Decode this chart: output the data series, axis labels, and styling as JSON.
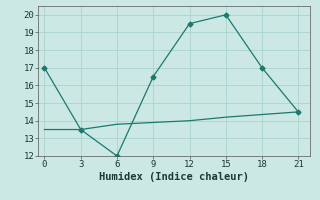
{
  "line1_x": [
    0,
    3,
    6,
    9,
    12,
    15,
    18,
    21
  ],
  "line1_y": [
    17,
    13.5,
    12,
    16.5,
    19.5,
    20,
    17,
    14.5
  ],
  "line2_x": [
    0,
    3,
    6,
    9,
    12,
    15,
    18,
    21
  ],
  "line2_y": [
    13.5,
    13.5,
    13.8,
    13.9,
    14.0,
    14.2,
    14.35,
    14.5
  ],
  "line_color": "#1a7a6e",
  "marker": "D",
  "markersize": 2.5,
  "xlabel": "Humidex (Indice chaleur)",
  "xlim": [
    -0.5,
    22
  ],
  "ylim": [
    12,
    20.5
  ],
  "xticks": [
    0,
    3,
    6,
    9,
    12,
    15,
    18,
    21
  ],
  "yticks": [
    12,
    13,
    14,
    15,
    16,
    17,
    18,
    19,
    20
  ],
  "background_color": "#cce8e4",
  "grid_color": "#aad4ce",
  "tick_fontsize": 6.5,
  "xlabel_fontsize": 7.5
}
